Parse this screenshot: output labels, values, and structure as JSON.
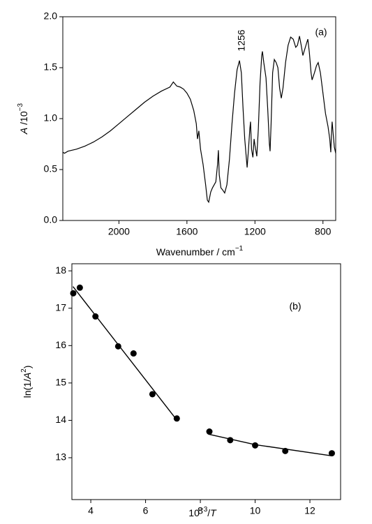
{
  "chart_data": [
    {
      "type": "line",
      "color": "#000000",
      "xlabel": [
        "Wavenumber / cm",
        "−1"
      ],
      "ylabel": [
        "A",
        " /10",
        "−3"
      ],
      "annotations": [
        "1256",
        "(a)"
      ],
      "xlim": [
        2330,
        725
      ],
      "ylim": [
        0,
        2.0
      ],
      "xticks": [
        2000,
        1600,
        1200,
        800
      ],
      "yticks": [
        {
          "value": 0,
          "label": "0.0"
        },
        {
          "value": 0.5,
          "label": "0.5"
        },
        {
          "value": 1,
          "label": "1.0"
        },
        1.5,
        {
          "value": 2,
          "label": "2.0"
        }
      ],
      "x": [
        2330,
        2320,
        2300,
        2250,
        2200,
        2150,
        2100,
        2050,
        2000,
        1950,
        1900,
        1850,
        1800,
        1750,
        1700,
        1680,
        1660,
        1640,
        1620,
        1600,
        1580,
        1560,
        1545,
        1538,
        1530,
        1520,
        1505,
        1490,
        1480,
        1472,
        1460,
        1450,
        1440,
        1430,
        1420,
        1415,
        1410,
        1400,
        1390,
        1378,
        1365,
        1350,
        1335,
        1320,
        1305,
        1291,
        1280,
        1270,
        1260,
        1250,
        1246,
        1238,
        1230,
        1226,
        1220,
        1212,
        1205,
        1200,
        1189,
        1180,
        1170,
        1160,
        1156,
        1148,
        1135,
        1125,
        1115,
        1111,
        1105,
        1096,
        1086,
        1075,
        1065,
        1055,
        1045,
        1035,
        1020,
        1005,
        990,
        975,
        960,
        950,
        938,
        928,
        918,
        900,
        889,
        880,
        870,
        864,
        850,
        838,
        828,
        815,
        800,
        785,
        770,
        760,
        754,
        750,
        746,
        740,
        733,
        725
      ],
      "values": [
        0.67,
        0.66,
        0.68,
        0.7,
        0.73,
        0.77,
        0.82,
        0.88,
        0.95,
        1.02,
        1.09,
        1.16,
        1.22,
        1.27,
        1.31,
        1.36,
        1.32,
        1.31,
        1.29,
        1.25,
        1.19,
        1.08,
        0.95,
        0.8,
        0.88,
        0.7,
        0.55,
        0.35,
        0.2,
        0.18,
        0.28,
        0.32,
        0.35,
        0.38,
        0.55,
        0.69,
        0.45,
        0.32,
        0.3,
        0.27,
        0.35,
        0.6,
        0.95,
        1.25,
        1.48,
        1.57,
        1.45,
        1.1,
        0.8,
        0.6,
        0.52,
        0.7,
        0.9,
        0.97,
        0.7,
        0.62,
        0.8,
        0.74,
        0.63,
        0.9,
        1.35,
        1.62,
        1.66,
        1.55,
        1.4,
        1.1,
        0.75,
        0.68,
        0.95,
        1.45,
        1.58,
        1.55,
        1.5,
        1.3,
        1.2,
        1.3,
        1.55,
        1.72,
        1.8,
        1.78,
        1.7,
        1.72,
        1.81,
        1.72,
        1.62,
        1.72,
        1.78,
        1.65,
        1.45,
        1.38,
        1.45,
        1.52,
        1.55,
        1.45,
        1.25,
        1.05,
        0.92,
        0.8,
        0.67,
        0.85,
        0.97,
        0.85,
        0.72,
        0.66
      ]
    },
    {
      "type": "scatter",
      "color": "#000000",
      "xlabel": [
        "10",
        "−3",
        "/",
        "T"
      ],
      "ylabel": [
        "ln(1/",
        "A",
        "2",
        ")"
      ],
      "annotations": [
        "(b)"
      ],
      "xlim": [
        3.31,
        13.12
      ],
      "ylim": [
        11.88,
        18.19
      ],
      "xticks": [
        4,
        6,
        8,
        10,
        12
      ],
      "yticks": [
        13,
        14,
        15,
        16,
        17,
        18
      ],
      "x": [
        3.36,
        3.6,
        4.17,
        5.0,
        5.56,
        6.25,
        7.14,
        8.33,
        9.09,
        10.0,
        11.1,
        12.8
      ],
      "values": [
        17.4,
        17.55,
        16.78,
        15.98,
        15.79,
        14.7,
        14.05,
        13.7,
        13.47,
        13.33,
        13.18,
        13.12
      ],
      "fits": [
        {
          "x": [
            3.35,
            7.15
          ],
          "values": [
            17.58,
            14.0
          ]
        },
        {
          "x": [
            8.3,
            10,
            12.8
          ],
          "values": [
            13.63,
            13.35,
            13.05
          ]
        }
      ]
    }
  ]
}
